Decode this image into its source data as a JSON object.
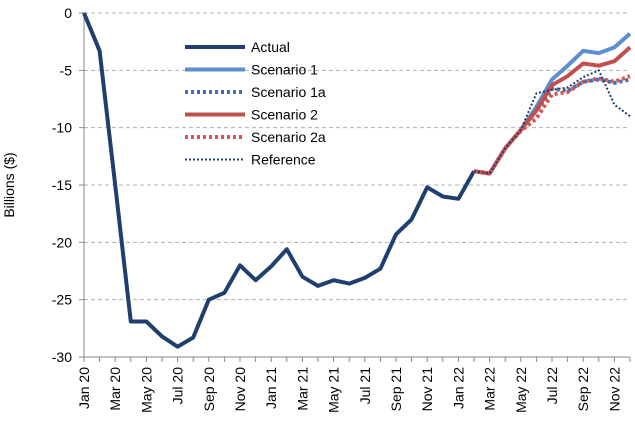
{
  "chart_data": {
    "type": "line",
    "y_label": "Billions ($)",
    "categories": [
      "Jan 20",
      null,
      "Mar 20",
      null,
      "May 20",
      null,
      "Jul 20",
      null,
      "Sep 20",
      null,
      "Nov 20",
      null,
      "Jan 21",
      null,
      "Mar 21",
      null,
      "May 21",
      null,
      "Jul 21",
      null,
      "Sep 21",
      null,
      "Nov 21",
      null,
      "Jan 22",
      null,
      "Mar 22",
      null,
      "May 22",
      null,
      "Jul 22",
      null,
      "Sep 22",
      null,
      "Nov 22",
      null
    ],
    "series": [
      {
        "name": "Actual",
        "color": "#1f3f6e",
        "style": "solid",
        "width": 4,
        "values": [
          0,
          -3.3,
          -15,
          -26.9,
          -26.9,
          -28.2,
          -29.1,
          -28.3,
          -25,
          -24.4,
          -22,
          -23.3,
          -22.1,
          -20.6,
          -23,
          -23.8,
          -23.3,
          -23.6,
          -23.1,
          -22.3,
          -19.3,
          -18,
          -15.2,
          -16,
          -16.2,
          -13.8,
          null,
          null,
          null,
          null,
          null,
          null,
          null,
          null,
          null,
          null
        ]
      },
      {
        "name": "Scenario 1",
        "color": "#5b8fd0",
        "style": "solid",
        "width": 4,
        "values": [
          null,
          null,
          null,
          null,
          null,
          null,
          null,
          null,
          null,
          null,
          null,
          null,
          null,
          null,
          null,
          null,
          null,
          null,
          null,
          null,
          null,
          null,
          null,
          null,
          null,
          -13.8,
          -14,
          -11.8,
          -10.2,
          -8.2,
          -5.8,
          -4.6,
          -3.3,
          -3.5,
          -3.0,
          -1.8
        ]
      },
      {
        "name": "Scenario 1a",
        "color": "#3f6fb5",
        "style": "dotted",
        "width": 4,
        "values": [
          null,
          null,
          null,
          null,
          null,
          null,
          null,
          null,
          null,
          null,
          null,
          null,
          null,
          null,
          null,
          null,
          null,
          null,
          null,
          null,
          null,
          null,
          null,
          null,
          null,
          -13.8,
          -14,
          -11.8,
          -10.2,
          -8.5,
          -6.6,
          -6.8,
          -6.0,
          -5.8,
          -6.1,
          -5.8
        ]
      },
      {
        "name": "Scenario 2",
        "color": "#c0504d",
        "style": "solid",
        "width": 4,
        "values": [
          null,
          null,
          null,
          null,
          null,
          null,
          null,
          null,
          null,
          null,
          null,
          null,
          null,
          null,
          null,
          null,
          null,
          null,
          null,
          null,
          null,
          null,
          null,
          null,
          null,
          -13.8,
          -14,
          -11.8,
          -10.2,
          -8.5,
          -6.3,
          -5.5,
          -4.4,
          -4.6,
          -4.2,
          -3.0
        ]
      },
      {
        "name": "Scenario 2a",
        "color": "#d9534f",
        "style": "dotted",
        "width": 4,
        "values": [
          null,
          null,
          null,
          null,
          null,
          null,
          null,
          null,
          null,
          null,
          null,
          null,
          null,
          null,
          null,
          null,
          null,
          null,
          null,
          null,
          null,
          null,
          null,
          null,
          null,
          -13.8,
          -14,
          -11.8,
          -10.3,
          -9.2,
          -7.1,
          -6.9,
          -6.0,
          -5.7,
          -6.0,
          -5.5
        ]
      },
      {
        "name": "Reference",
        "color": "#1f3f6e",
        "style": "dotted",
        "width": 2,
        "values": [
          null,
          null,
          null,
          null,
          null,
          null,
          null,
          null,
          null,
          null,
          null,
          null,
          null,
          null,
          null,
          null,
          null,
          null,
          null,
          null,
          null,
          null,
          null,
          null,
          null,
          -13.8,
          -14,
          -11.8,
          -10.2,
          -7.0,
          -6.7,
          -6.5,
          -5.6,
          -5.0,
          -8.0,
          -9.0
        ]
      }
    ],
    "ylim": [
      -30,
      0
    ],
    "yticks": [
      -30,
      -25,
      -20,
      -15,
      -10,
      -5,
      0
    ],
    "grid": true,
    "legend": "top-left"
  }
}
